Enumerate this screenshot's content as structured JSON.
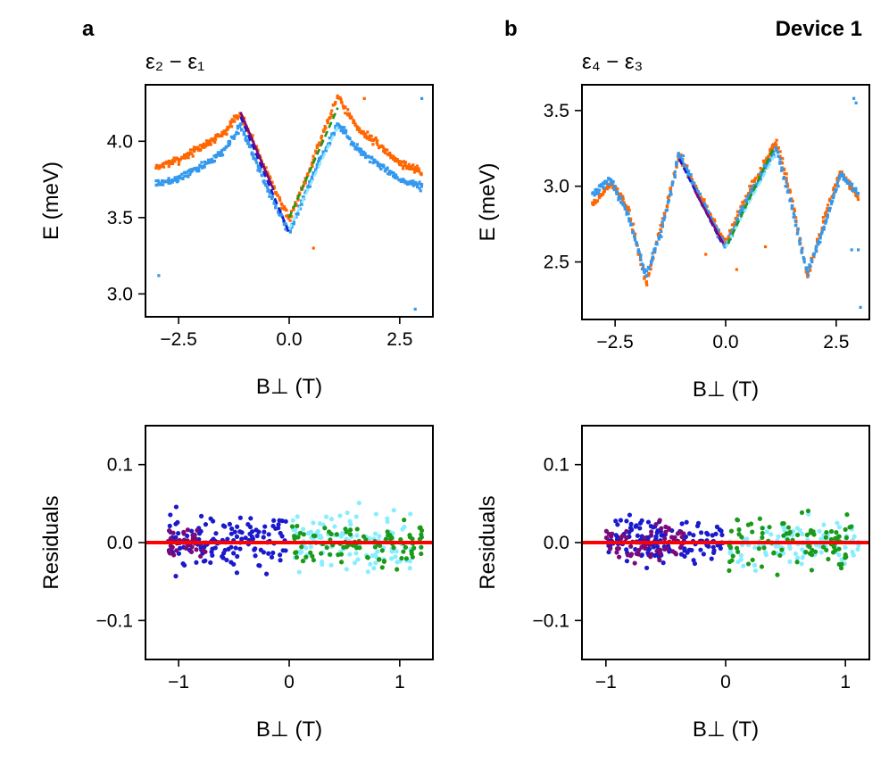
{
  "figure": {
    "panel_a_label": "a",
    "panel_b_label": "b",
    "device_label": "Device 1",
    "colors": {
      "orange": "#ff6600",
      "blue_data": "#3399ee",
      "navy_fit": "#1a1acc",
      "purple_fit": "#7a0a7a",
      "green_fit": "#1a9a1a",
      "cyan_fit": "#88eeff",
      "red_zero": "#ff0000"
    }
  },
  "chart_data": [
    {
      "id": "a_top",
      "type": "scatter",
      "title": "ε₂ − ε₁",
      "xlabel": "B⊥ (T)",
      "ylabel": "E (meV)",
      "xlim": [
        -3.25,
        3.25
      ],
      "ylim": [
        2.85,
        4.37
      ],
      "xticks": [
        -2.5,
        0.0,
        2.5
      ],
      "xtick_labels": [
        "−2.5",
        "0.0",
        "2.5"
      ],
      "yticks": [
        3.0,
        3.5,
        4.0
      ],
      "ytick_labels": [
        "3.0",
        "3.5",
        "4.0"
      ],
      "band_period": 0,
      "peak_B": 1.1,
      "series": [
        {
          "name": "upper-branch",
          "color": "#ff6600",
          "B": [
            -3.0,
            -2.5,
            -2.0,
            -1.5,
            -1.1,
            -0.5,
            0.0,
            0.5,
            1.1,
            1.5,
            2.0,
            2.5,
            3.0
          ],
          "E": [
            3.83,
            3.88,
            3.96,
            4.05,
            4.18,
            3.8,
            3.48,
            3.85,
            4.3,
            4.1,
            3.98,
            3.86,
            3.8
          ]
        },
        {
          "name": "lower-branch",
          "color": "#3399ee",
          "B": [
            -3.0,
            -2.5,
            -2.0,
            -1.5,
            -1.1,
            -0.5,
            0.0,
            0.5,
            1.1,
            1.5,
            2.0,
            2.5,
            3.0
          ],
          "E": [
            3.72,
            3.76,
            3.83,
            3.93,
            4.1,
            3.7,
            3.4,
            3.75,
            4.12,
            3.96,
            3.85,
            3.75,
            3.7
          ]
        },
        {
          "name": "fit-neg-navy",
          "color": "#1a1acc",
          "dashed": true,
          "B": [
            -1.1,
            0.0
          ],
          "E": [
            4.16,
            3.4
          ]
        },
        {
          "name": "fit-neg-purple",
          "color": "#7a0a7a",
          "dashed": false,
          "B": [
            -1.1,
            -0.35
          ],
          "E": [
            4.19,
            3.68
          ]
        },
        {
          "name": "fit-pos-cyan",
          "color": "#88eeff",
          "dashed": true,
          "B": [
            0.0,
            1.1
          ],
          "E": [
            3.42,
            4.1
          ]
        },
        {
          "name": "fit-pos-green",
          "color": "#1a9a1a",
          "dashed": true,
          "B": [
            0.0,
            1.1
          ],
          "E": [
            3.5,
            4.22
          ]
        }
      ],
      "outliers": [
        {
          "B": -2.95,
          "E": 3.12,
          "color": "#3399ee"
        },
        {
          "B": 2.85,
          "E": 2.9,
          "color": "#3399ee"
        },
        {
          "B": 3.0,
          "E": 4.28,
          "color": "#3399ee"
        },
        {
          "B": 0.55,
          "E": 3.3,
          "color": "#ff6600"
        },
        {
          "B": 1.7,
          "E": 4.28,
          "color": "#ff6600"
        }
      ]
    },
    {
      "id": "b_top",
      "type": "scatter",
      "title": "ε₄ − ε₃",
      "xlabel": "B⊥ (T)",
      "ylabel": "E (meV)",
      "xlim": [
        -3.25,
        3.25
      ],
      "ylim": [
        2.12,
        3.67
      ],
      "xticks": [
        -2.5,
        0.0,
        2.5
      ],
      "xtick_labels": [
        "−2.5",
        "0.0",
        "2.5"
      ],
      "yticks": [
        2.5,
        3.0,
        3.5
      ],
      "ytick_labels": [
        "2.5",
        "3.0",
        "3.5"
      ],
      "series": [
        {
          "name": "data-orange",
          "color": "#ff6600",
          "B": [
            -3.0,
            -2.6,
            -2.2,
            -1.8,
            -1.4,
            -1.05,
            -0.5,
            0.0,
            0.5,
            1.15,
            1.5,
            1.85,
            2.3,
            2.6,
            3.0
          ],
          "E": [
            2.88,
            3.02,
            2.85,
            2.35,
            2.8,
            3.2,
            2.9,
            2.62,
            2.95,
            3.3,
            2.9,
            2.4,
            2.85,
            3.1,
            2.92
          ]
        },
        {
          "name": "data-blue",
          "color": "#3399ee",
          "B": [
            -3.0,
            -2.6,
            -2.2,
            -1.8,
            -1.4,
            -1.05,
            -0.5,
            0.0,
            0.5,
            1.15,
            1.5,
            1.85,
            2.3,
            2.6,
            3.0
          ],
          "E": [
            2.95,
            3.05,
            2.8,
            2.4,
            2.76,
            3.22,
            2.88,
            2.6,
            2.92,
            3.25,
            2.86,
            2.42,
            2.8,
            3.08,
            2.95
          ]
        },
        {
          "name": "fit-neg-navy",
          "color": "#1a1acc",
          "dashed": true,
          "B": [
            -1.05,
            -0.1
          ],
          "E": [
            3.18,
            2.63
          ]
        },
        {
          "name": "fit-neg-purple",
          "color": "#7a0a7a",
          "dashed": false,
          "B": [
            -0.7,
            -0.05
          ],
          "E": [
            2.97,
            2.62
          ]
        },
        {
          "name": "fit-pos-cyan",
          "color": "#88eeff",
          "dashed": true,
          "B": [
            0.0,
            1.1
          ],
          "E": [
            2.6,
            3.2
          ]
        },
        {
          "name": "fit-pos-green",
          "color": "#1a9a1a",
          "dashed": true,
          "B": [
            0.05,
            1.1
          ],
          "E": [
            2.62,
            3.26
          ]
        }
      ],
      "outliers": [
        {
          "B": 2.9,
          "E": 3.58,
          "color": "#3399ee"
        },
        {
          "B": 2.95,
          "E": 3.55,
          "color": "#3399ee"
        },
        {
          "B": 2.85,
          "E": 2.58,
          "color": "#3399ee"
        },
        {
          "B": 3.0,
          "E": 2.58,
          "color": "#3399ee"
        },
        {
          "B": 3.05,
          "E": 2.2,
          "color": "#3399ee"
        },
        {
          "B": -0.45,
          "E": 2.55,
          "color": "#ff6600"
        },
        {
          "B": 0.9,
          "E": 2.6,
          "color": "#ff6600"
        },
        {
          "B": 0.25,
          "E": 2.45,
          "color": "#ff6600"
        }
      ]
    },
    {
      "id": "a_bottom",
      "type": "scatter",
      "xlabel": "B⊥ (T)",
      "ylabel": "Residuals",
      "xlim": [
        -1.3,
        1.3
      ],
      "ylim": [
        -0.15,
        0.15
      ],
      "xticks": [
        -1,
        0,
        1
      ],
      "xtick_labels": [
        "−1",
        "0",
        "1"
      ],
      "yticks": [
        -0.1,
        0.0,
        0.1
      ],
      "ytick_labels": [
        "−0.1",
        "0.0",
        "0.1"
      ],
      "zero_line_color": "#ff0000",
      "series": [
        {
          "name": "navy",
          "color": "#1a1acc",
          "x_range": [
            -1.1,
            -0.02
          ],
          "spread": 0.048,
          "count": 140,
          "seed": 11
        },
        {
          "name": "purple",
          "color": "#7a0a7a",
          "x_range": [
            -1.1,
            -0.75
          ],
          "spread": 0.028,
          "count": 45,
          "seed": 23
        },
        {
          "name": "cyan",
          "color": "#88eeff",
          "x_range": [
            0.02,
            1.12
          ],
          "spread": 0.055,
          "count": 120,
          "seed": 37
        },
        {
          "name": "green",
          "color": "#1a9a1a",
          "x_range": [
            0.02,
            1.2
          ],
          "spread": 0.04,
          "count": 95,
          "seed": 51
        }
      ]
    },
    {
      "id": "b_bottom",
      "type": "scatter",
      "xlabel": "B⊥ (T)",
      "ylabel": "Residuals",
      "xlim": [
        -1.2,
        1.2
      ],
      "ylim": [
        -0.15,
        0.15
      ],
      "xticks": [
        -1,
        0,
        1
      ],
      "xtick_labels": [
        "−1",
        "0",
        "1"
      ],
      "yticks": [
        -0.1,
        0.0,
        0.1
      ],
      "ytick_labels": [
        "−0.1",
        "0.0",
        "0.1"
      ],
      "zero_line_color": "#ff0000",
      "series": [
        {
          "name": "navy",
          "color": "#1a1acc",
          "x_range": [
            -1.0,
            -0.02
          ],
          "spread": 0.04,
          "count": 150,
          "seed": 61
        },
        {
          "name": "purple",
          "color": "#7a0a7a",
          "x_range": [
            -1.0,
            -0.35
          ],
          "spread": 0.038,
          "count": 70,
          "seed": 73
        },
        {
          "name": "cyan",
          "color": "#88eeff",
          "x_range": [
            0.02,
            1.12
          ],
          "spread": 0.04,
          "count": 115,
          "seed": 83
        },
        {
          "name": "green",
          "color": "#1a9a1a",
          "x_range": [
            0.02,
            1.05
          ],
          "spread": 0.05,
          "count": 90,
          "seed": 97
        }
      ]
    }
  ]
}
